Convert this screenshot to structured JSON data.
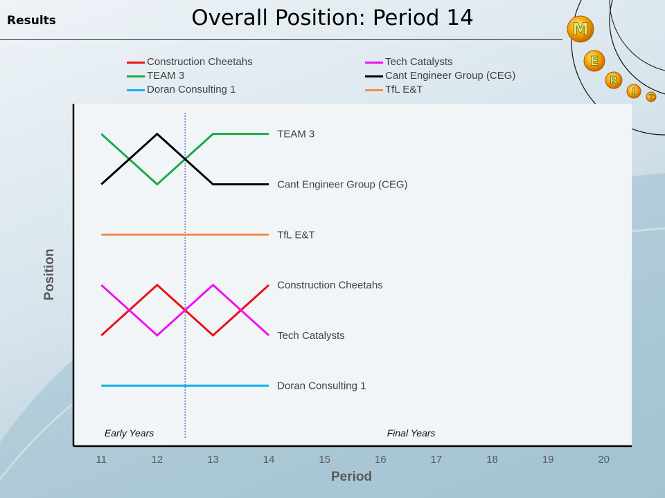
{
  "header": {
    "section_label": "Results",
    "title": "Overall Position: Period 14"
  },
  "logo": {
    "letters": [
      "M",
      "E",
      "R",
      "I",
      "T"
    ]
  },
  "chart_data": {
    "type": "line",
    "xlabel": "Period",
    "ylabel": "Position",
    "x": [
      11,
      12,
      13,
      14
    ],
    "x_ticks": [
      11,
      12,
      13,
      14,
      15,
      16,
      17,
      18,
      19,
      20
    ],
    "xlim": [
      10.5,
      20.5
    ],
    "y_axis_reversed": true,
    "ylim": [
      0.4,
      7.2
    ],
    "divider_x": 12.5,
    "annotations": [
      {
        "text": "Early Years",
        "x": 11.5,
        "region": "left"
      },
      {
        "text": "Final Years",
        "x": 16.55,
        "region": "right"
      }
    ],
    "series": [
      {
        "name": "Construction Cheetahs",
        "color": "#ee1111",
        "values": [
          5,
          4,
          5,
          4
        ],
        "legend_col": 0,
        "legend_row": 0
      },
      {
        "name": "TEAM 3",
        "color": "#19a84b",
        "values": [
          1,
          2,
          1,
          1
        ],
        "legend_col": 0,
        "legend_row": 1
      },
      {
        "name": "Doran Consulting 1",
        "color": "#11aee8",
        "values": [
          6,
          6,
          6,
          6
        ],
        "legend_col": 0,
        "legend_row": 2
      },
      {
        "name": "Tech Catalysts",
        "color": "#ee11ee",
        "values": [
          4,
          5,
          4,
          5
        ],
        "legend_col": 1,
        "legend_row": 0
      },
      {
        "name": "Cant Engineer Group (CEG)",
        "color": "#000000",
        "values": [
          2,
          1,
          2,
          2
        ],
        "legend_col": 1,
        "legend_row": 1
      },
      {
        "name": "TfL E&T",
        "color": "#f28c44",
        "values": [
          3,
          3,
          3,
          3
        ],
        "legend_col": 1,
        "legend_row": 2
      }
    ]
  }
}
